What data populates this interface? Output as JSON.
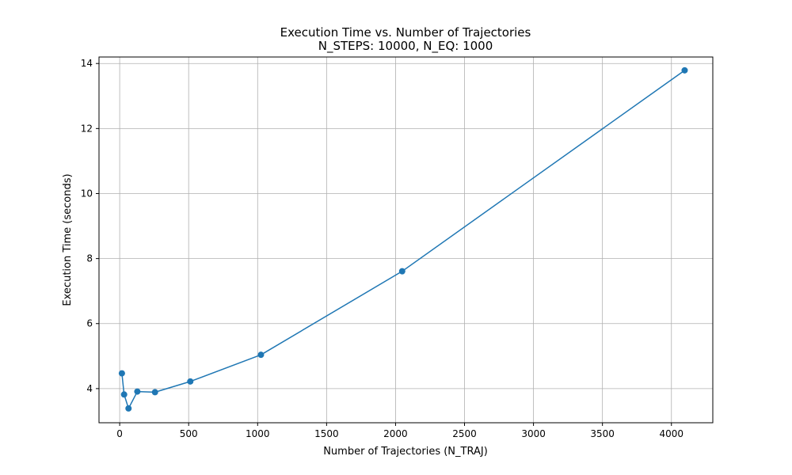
{
  "chart_data": {
    "type": "line",
    "title": "Execution Time vs. Number of Trajectories",
    "subtitle": "N_STEPS: 10000, N_EQ: 1000",
    "xlabel": "Number of Trajectories (N_TRAJ)",
    "ylabel": "Execution Time (seconds)",
    "xlim": [
      -150,
      4300
    ],
    "ylim": [
      2.95,
      14.2
    ],
    "xticks": [
      0,
      500,
      1000,
      1500,
      2000,
      2500,
      3000,
      3500,
      4000
    ],
    "yticks": [
      4,
      6,
      8,
      10,
      12,
      14
    ],
    "grid": true,
    "series": [
      {
        "color": "#1f77b4",
        "marker": "circle",
        "x": [
          16,
          32,
          64,
          128,
          256,
          512,
          1024,
          2048,
          4096
        ],
        "y": [
          4.47,
          3.82,
          3.39,
          3.91,
          3.89,
          4.22,
          5.04,
          7.61,
          13.79
        ]
      }
    ]
  }
}
